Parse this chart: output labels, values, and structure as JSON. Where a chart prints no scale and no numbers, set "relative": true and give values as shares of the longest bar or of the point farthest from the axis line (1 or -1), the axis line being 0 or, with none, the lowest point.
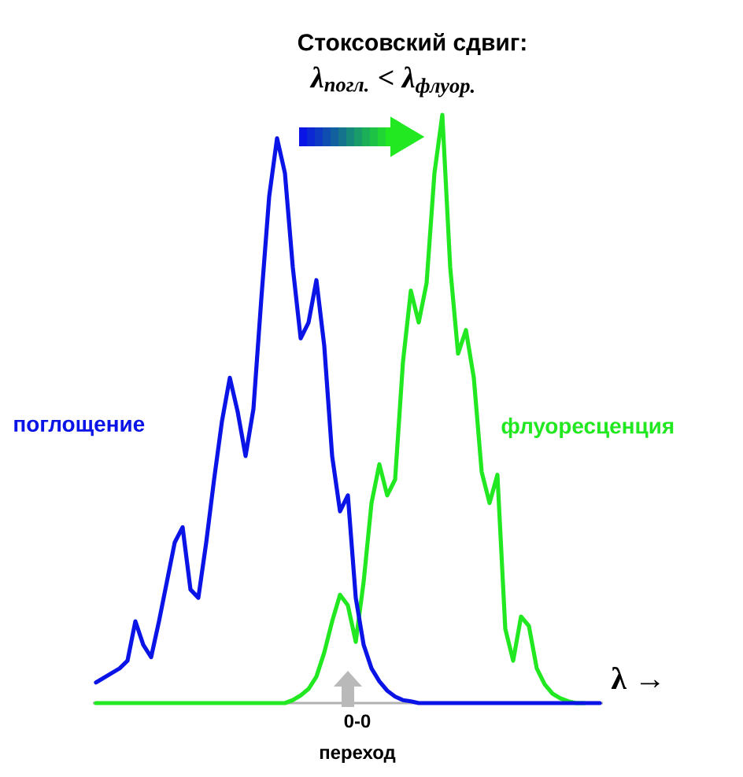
{
  "chart_data": {
    "type": "line",
    "title": "Стоксовский сдвиг:",
    "subtitle": "λ$_{погл.}$  <  λ$_{флуор.}$",
    "xlabel": "λ →",
    "relative": true,
    "marker": "none",
    "line_style": "solid",
    "categories": [
      null,
      null,
      null,
      null,
      null,
      null,
      null,
      null,
      null,
      null,
      null,
      null,
      null,
      null,
      null,
      null,
      null,
      null,
      null,
      null,
      null,
      null,
      null,
      null,
      null,
      null,
      null,
      null,
      null,
      null,
      null,
      null,
      null,
      null,
      null,
      null,
      null,
      null,
      null,
      null,
      null,
      null,
      null,
      null,
      null,
      null,
      null,
      null,
      null,
      null,
      null,
      null,
      null,
      null,
      null,
      null,
      null,
      null,
      null,
      null,
      null,
      null,
      null,
      null,
      null
    ],
    "series": [
      {
        "name": "поглощение",
        "color": "#0a14e6",
        "values": [
          0.035,
          0.043,
          0.051,
          0.059,
          0.072,
          0.139,
          0.099,
          0.078,
          0.139,
          0.206,
          0.273,
          0.299,
          0.193,
          0.179,
          0.273,
          0.38,
          0.479,
          0.553,
          0.495,
          0.42,
          0.5,
          0.687,
          0.861,
          0.96,
          0.901,
          0.741,
          0.62,
          0.647,
          0.719,
          0.607,
          0.42,
          0.326,
          0.353,
          0.179,
          0.099,
          0.059,
          0.037,
          0.021,
          0.011,
          0.005,
          0.003,
          0,
          0,
          0,
          0,
          0,
          0,
          0,
          0,
          0,
          0,
          0,
          0,
          0,
          0,
          0,
          0,
          0,
          0,
          0,
          0,
          0,
          0,
          0,
          0
        ]
      },
      {
        "name": "флуоресценция",
        "color": "#22e822",
        "values": [
          0,
          0,
          0,
          0,
          0,
          0,
          0,
          0,
          0,
          0,
          0,
          0,
          0,
          0,
          0,
          0,
          0,
          0,
          0,
          0,
          0,
          0,
          0,
          0,
          0,
          0.005,
          0.013,
          0.024,
          0.045,
          0.086,
          0.139,
          0.184,
          0.166,
          0.104,
          0.206,
          0.34,
          0.406,
          0.353,
          0.38,
          0.58,
          0.701,
          0.647,
          0.714,
          0.901,
          1.0,
          0.741,
          0.594,
          0.634,
          0.553,
          0.393,
          0.34,
          0.388,
          0.126,
          0.072,
          0.147,
          0.131,
          0.059,
          0.032,
          0.016,
          0.008,
          0.003,
          0,
          0,
          null,
          null
        ]
      }
    ],
    "annotations": [
      "0-0 переход"
    ]
  }
}
